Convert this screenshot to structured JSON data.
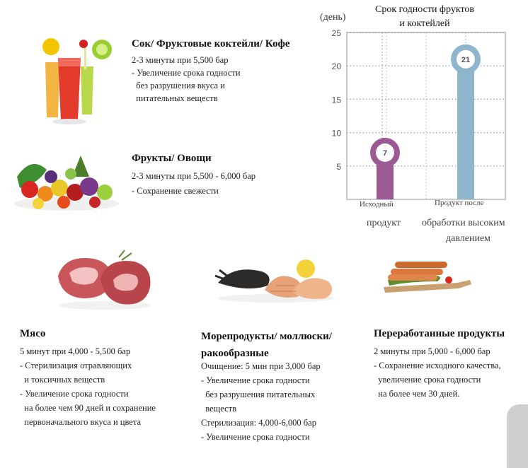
{
  "sections": {
    "juice": {
      "title": "Сок/ Фруктовые коктейли/ Кофе",
      "lines": [
        "2-3 минуты при 5,500 бар",
        "- Увеличение срока годности",
        "  без разрушения вкуса и",
        "  питательных веществ"
      ]
    },
    "fruits": {
      "title": "Фрукты/ Овощи",
      "lines": [
        "2-3 минуты при 5,500 - 6,000 бар",
        "- Сохранение свежести"
      ]
    },
    "meat": {
      "title": "Мясо",
      "lines": [
        "5 минут при 4,000 - 5,500 бар",
        "- Стерилизация отравляющих",
        "  и токсичных веществ",
        "- Увеличение срока годности",
        "  на более чем 90 дней и сохранение",
        "  первоначального вкуса и цвета"
      ]
    },
    "seafood": {
      "title_line1": "Морепродукты/ моллюски/",
      "title_line2": "ракообразные",
      "lines": [
        "Очищение: 5 мин при 3,000 бар",
        "- Увеличение срока годности",
        "  без разрушения питательных",
        "  веществ",
        "Стерилизация: 4,000-6,000 бар",
        "- Увеличение срока годности"
      ]
    },
    "processed": {
      "title": "Переработанные продукты",
      "lines": [
        "2 минуты при 5,000 - 6,000 бар",
        "- Сохранение исходного качества,",
        "  увеличение срока годности",
        "  на более чем 30 дней."
      ]
    }
  },
  "chart_data": {
    "type": "bar",
    "title_line1": "Срок годности фруктов",
    "title_line2": "и коктейлей",
    "ylabel": "(день)",
    "ylim": [
      0,
      25
    ],
    "yticks": [
      5,
      10,
      15,
      20,
      25
    ],
    "grid": true,
    "categories": [
      "Исходный продукт",
      "Продукт после обработки высоким давлением"
    ],
    "category_labels": [
      {
        "small": "Исходный",
        "big": "продукт"
      },
      {
        "small": "Продукт после",
        "big_line1": "обработки высоким",
        "big_line2": "давлением"
      }
    ],
    "values": [
      7,
      21
    ],
    "colors": [
      "#9b5a94",
      "#8fb5cc"
    ]
  }
}
